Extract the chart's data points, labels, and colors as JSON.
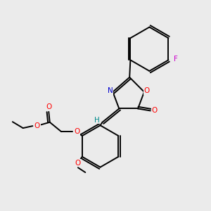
{
  "bg_color": "#ebebeb",
  "bond_color": "#000000",
  "atom_colors": {
    "O": "#ff0000",
    "N": "#0000cd",
    "F": "#cc00cc",
    "H": "#008b8b",
    "C": "#000000"
  },
  "figsize": [
    3.0,
    3.0
  ],
  "dpi": 100,
  "lw": 1.4,
  "fontsize": 7.5
}
